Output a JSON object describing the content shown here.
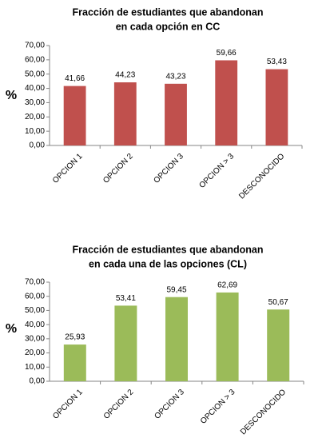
{
  "chart_data": [
    {
      "type": "bar",
      "title": [
        "Fracción de estudiantes que abandonan",
        "en cada opción en CC"
      ],
      "y_label": "%",
      "categories": [
        "OPCION 1",
        "OPCION 2",
        "OPCION 3",
        "OPCION > 3",
        "DESCONOCIDO"
      ],
      "values": [
        41.66,
        44.23,
        43.23,
        59.66,
        53.43
      ],
      "value_labels": [
        "41,66",
        "44,23",
        "43,23",
        "59,66",
        "53,43"
      ],
      "color": "#c0504d",
      "ylim": [
        0,
        70
      ],
      "yticks": [
        {
          "value": 0,
          "label": "0,00"
        },
        {
          "value": 10,
          "label": "10,00"
        },
        {
          "value": 20,
          "label": "20,00"
        },
        {
          "value": 30,
          "label": "30,00"
        },
        {
          "value": 40,
          "label": "40,00"
        },
        {
          "value": 50,
          "label": "50,00"
        },
        {
          "value": 60,
          "label": "60,00"
        },
        {
          "value": 70,
          "label": "70,00"
        }
      ],
      "grid": false
    },
    {
      "type": "bar",
      "title": [
        "Fracción de estudiantes que abandonan",
        "en cada una de las opciones (CL)"
      ],
      "y_label": "%",
      "categories": [
        "OPCION 1",
        "OPCION 2",
        "OPCION 3",
        "OPCION > 3",
        "DESCONOCIDO"
      ],
      "values": [
        25.93,
        53.41,
        59.45,
        62.69,
        50.67
      ],
      "value_labels": [
        "25,93",
        "53,41",
        "59,45",
        "62,69",
        "50,67"
      ],
      "color": "#9bbb59",
      "ylim": [
        0,
        70
      ],
      "yticks": [
        {
          "value": 0,
          "label": "0,00"
        },
        {
          "value": 10,
          "label": "10,00"
        },
        {
          "value": 20,
          "label": "20,00"
        },
        {
          "value": 30,
          "label": "30,00"
        },
        {
          "value": 40,
          "label": "40,00"
        },
        {
          "value": 50,
          "label": "50,00"
        },
        {
          "value": 60,
          "label": "60,00"
        },
        {
          "value": 70,
          "label": "70,00"
        }
      ],
      "grid": false
    }
  ]
}
